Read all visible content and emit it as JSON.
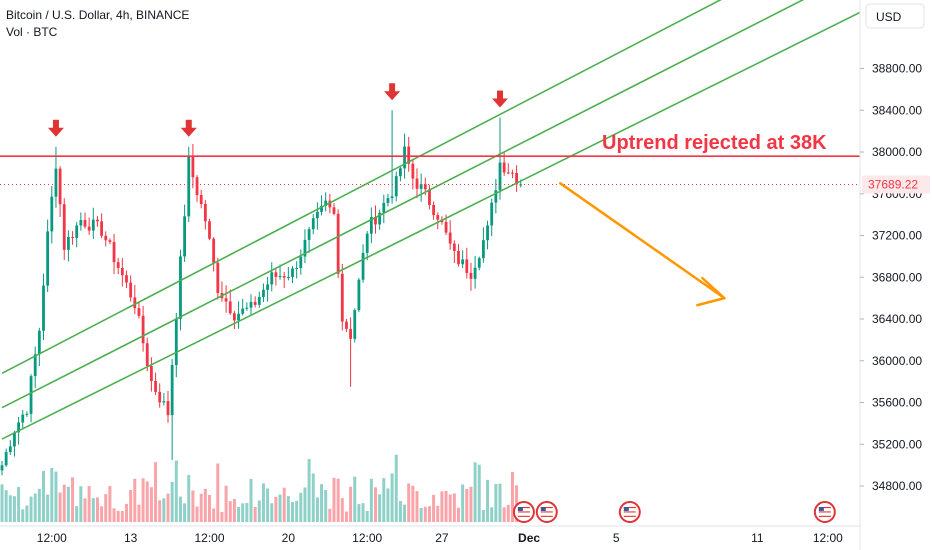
{
  "header": {
    "title": "Bitcoin / U.S. Dollar, 4h, BINANCE",
    "volume_label": "Vol · BTC"
  },
  "currency_button": "USD",
  "price_label": {
    "value": "37689.22",
    "color": "#f23645"
  },
  "colors": {
    "up": "#089981",
    "down": "#f23645",
    "vol_up": "#8fd1c8",
    "vol_down": "#f8a4a9",
    "channel": "#4caf50",
    "resistance": "#f23645",
    "arrow": "#ff9800",
    "marker": "#e03434",
    "annotation": "#f23645"
  },
  "annotations": {
    "resistance_text": "Uptrend rejected at 38K"
  },
  "chart_data": {
    "type": "candlestick",
    "symbol": "Bitcoin / U.S. Dollar",
    "interval": "4h",
    "exchange": "BINANCE",
    "y_axis": {
      "side": "right",
      "ticks": [
        34800,
        35200,
        35600,
        36000,
        36400,
        36800,
        37200,
        37600,
        38000,
        38400,
        38800
      ],
      "tick_labels": [
        "34800.00",
        "35200.00",
        "35600.00",
        "36000.00",
        "36400.00",
        "36800.00",
        "37200.00",
        "37600.00",
        "38000.00",
        "38400.00",
        "38800.00"
      ]
    },
    "x_axis": {
      "tick_labels": [
        "12:00",
        "13",
        "12:00",
        "20",
        "12:00",
        "27",
        "Dec",
        "5",
        "11",
        "12:00"
      ]
    },
    "current_price": 37689.22,
    "resistance_level": 37960,
    "annotation": "Uptrend rejected at 38K",
    "grid": false,
    "price_anchors": [
      [
        0,
        35000
      ],
      [
        3,
        35350
      ],
      [
        6,
        35550
      ],
      [
        9,
        36300
      ],
      [
        11,
        37200
      ],
      [
        13,
        37900
      ],
      [
        15,
        37100
      ],
      [
        19,
        37350
      ],
      [
        24,
        37250
      ],
      [
        28,
        36900
      ],
      [
        32,
        36550
      ],
      [
        36,
        35800
      ],
      [
        40,
        35500
      ],
      [
        45,
        37900
      ],
      [
        49,
        37350
      ],
      [
        52,
        36700
      ],
      [
        56,
        36450
      ],
      [
        60,
        36500
      ],
      [
        65,
        36800
      ],
      [
        70,
        36850
      ],
      [
        75,
        37300
      ],
      [
        78,
        37500
      ],
      [
        80,
        37400
      ],
      [
        82,
        36400
      ],
      [
        84,
        36250
      ],
      [
        88,
        37250
      ],
      [
        92,
        37500
      ],
      [
        95,
        37700
      ],
      [
        97,
        38000
      ],
      [
        99,
        37750
      ],
      [
        101,
        37650
      ],
      [
        105,
        37400
      ],
      [
        109,
        37000
      ],
      [
        113,
        36850
      ],
      [
        117,
        37250
      ],
      [
        120,
        37900
      ],
      [
        123,
        37800
      ],
      [
        125,
        37700
      ],
      [
        126,
        37689
      ]
    ],
    "wick_spikes": [
      {
        "index": 13,
        "high": 38050
      },
      {
        "index": 45,
        "high": 38050
      },
      {
        "index": 94,
        "high": 38400
      },
      {
        "index": 120,
        "high": 38330
      },
      {
        "index": 84,
        "low": 35750
      },
      {
        "index": 41,
        "low": 35050
      }
    ],
    "rejection_markers": [
      {
        "index": 13
      },
      {
        "index": 45
      },
      {
        "index": 94
      },
      {
        "index": 120
      }
    ],
    "channel_lines": [
      {
        "from": [
          0,
          35880
        ],
        "to": [
          180,
          39600
        ]
      },
      {
        "from": [
          0,
          35550
        ],
        "to": [
          200,
          39600
        ]
      },
      {
        "from": [
          0,
          35250
        ],
        "to": [
          220,
          39600
        ]
      }
    ],
    "projection_arrow": {
      "from": [
        135,
        37700
      ],
      "to": [
        176,
        36600
      ]
    },
    "event_icons": [
      126,
      132,
      152,
      199
    ]
  }
}
